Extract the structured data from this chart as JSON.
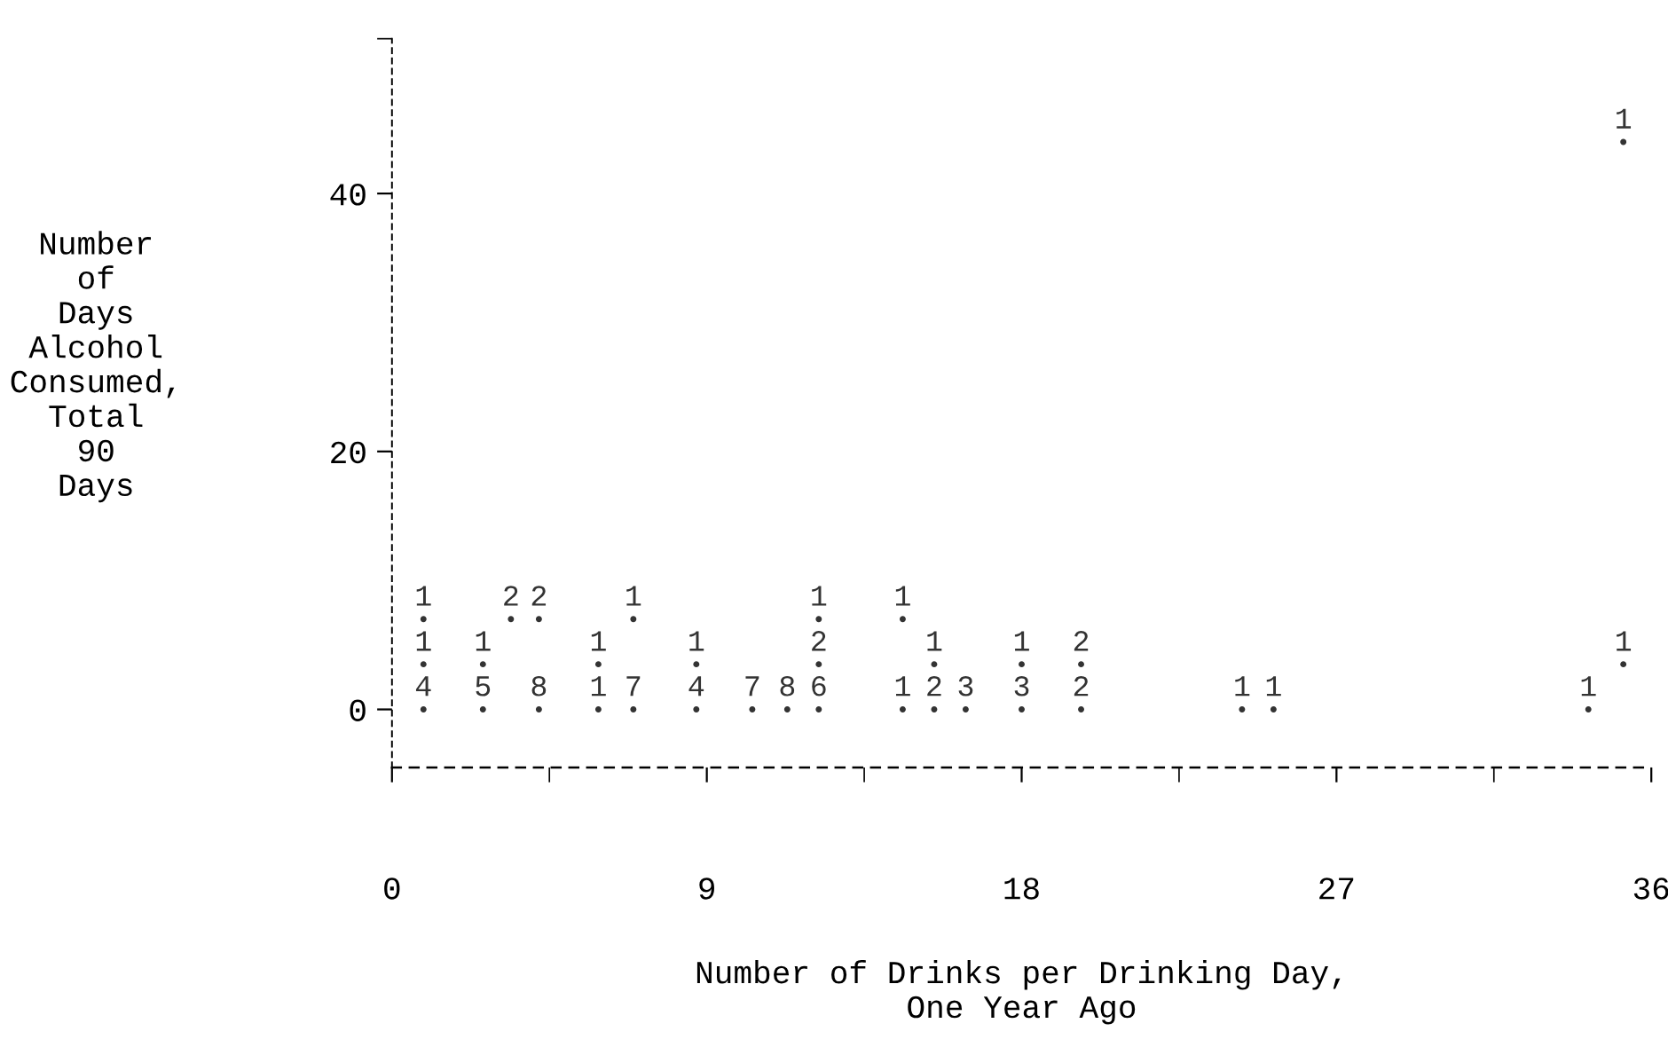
{
  "chart_data": {
    "type": "scatter",
    "xlabel": "Number of Drinks per Drinking Day,\nOne Year Ago",
    "ylabel": "Number\nof\nDays\nAlcohol\nConsumed,\nTotal\n90\nDays",
    "series": [
      {
        "color": "#333333",
        "x": [
          0.9,
          2.6,
          4.2,
          5.9,
          6.9,
          8.7,
          10.3,
          11.3,
          12.2,
          14.6,
          15.5,
          16.4,
          18.0,
          19.7,
          24.3,
          25.2,
          34.2,
          0.9,
          2.6,
          5.9,
          8.7,
          12.2,
          15.5,
          18.0,
          19.7,
          35.2,
          0.9,
          3.4,
          4.2,
          6.9,
          12.2,
          14.6,
          35.2
        ],
        "values": [
          0,
          0,
          0,
          0,
          0,
          0,
          0,
          0,
          0,
          0,
          0,
          0,
          0,
          0,
          0,
          0,
          0,
          3.5,
          3.5,
          3.5,
          3.5,
          3.5,
          3.5,
          3.5,
          3.5,
          3.5,
          7,
          7,
          7,
          7,
          7,
          7,
          44
        ]
      }
    ],
    "annotations": [
      "4",
      "5",
      "8",
      "1",
      "7",
      "4",
      "7",
      "8",
      "6",
      "1",
      "2",
      "3",
      "3",
      "2",
      "1",
      "1",
      "1",
      "1",
      "1",
      "1",
      "1",
      "2",
      "1",
      "1",
      "2",
      "1",
      "1",
      "2",
      "2",
      "1",
      "1",
      "1",
      "1"
    ],
    "xlim": [
      0,
      36
    ],
    "xticks": [
      0,
      {
        "value": 4.5,
        "label": null
      },
      9,
      {
        "value": 13.5,
        "label": null
      },
      18,
      {
        "value": 22.5,
        "label": null
      },
      27,
      {
        "value": 31.5,
        "label": null
      },
      36
    ],
    "ylim": [
      -4.5,
      52
    ],
    "yticks": [
      0,
      20,
      40,
      {
        "value": 52,
        "label": null
      }
    ],
    "grid": false,
    "legend": false
  }
}
